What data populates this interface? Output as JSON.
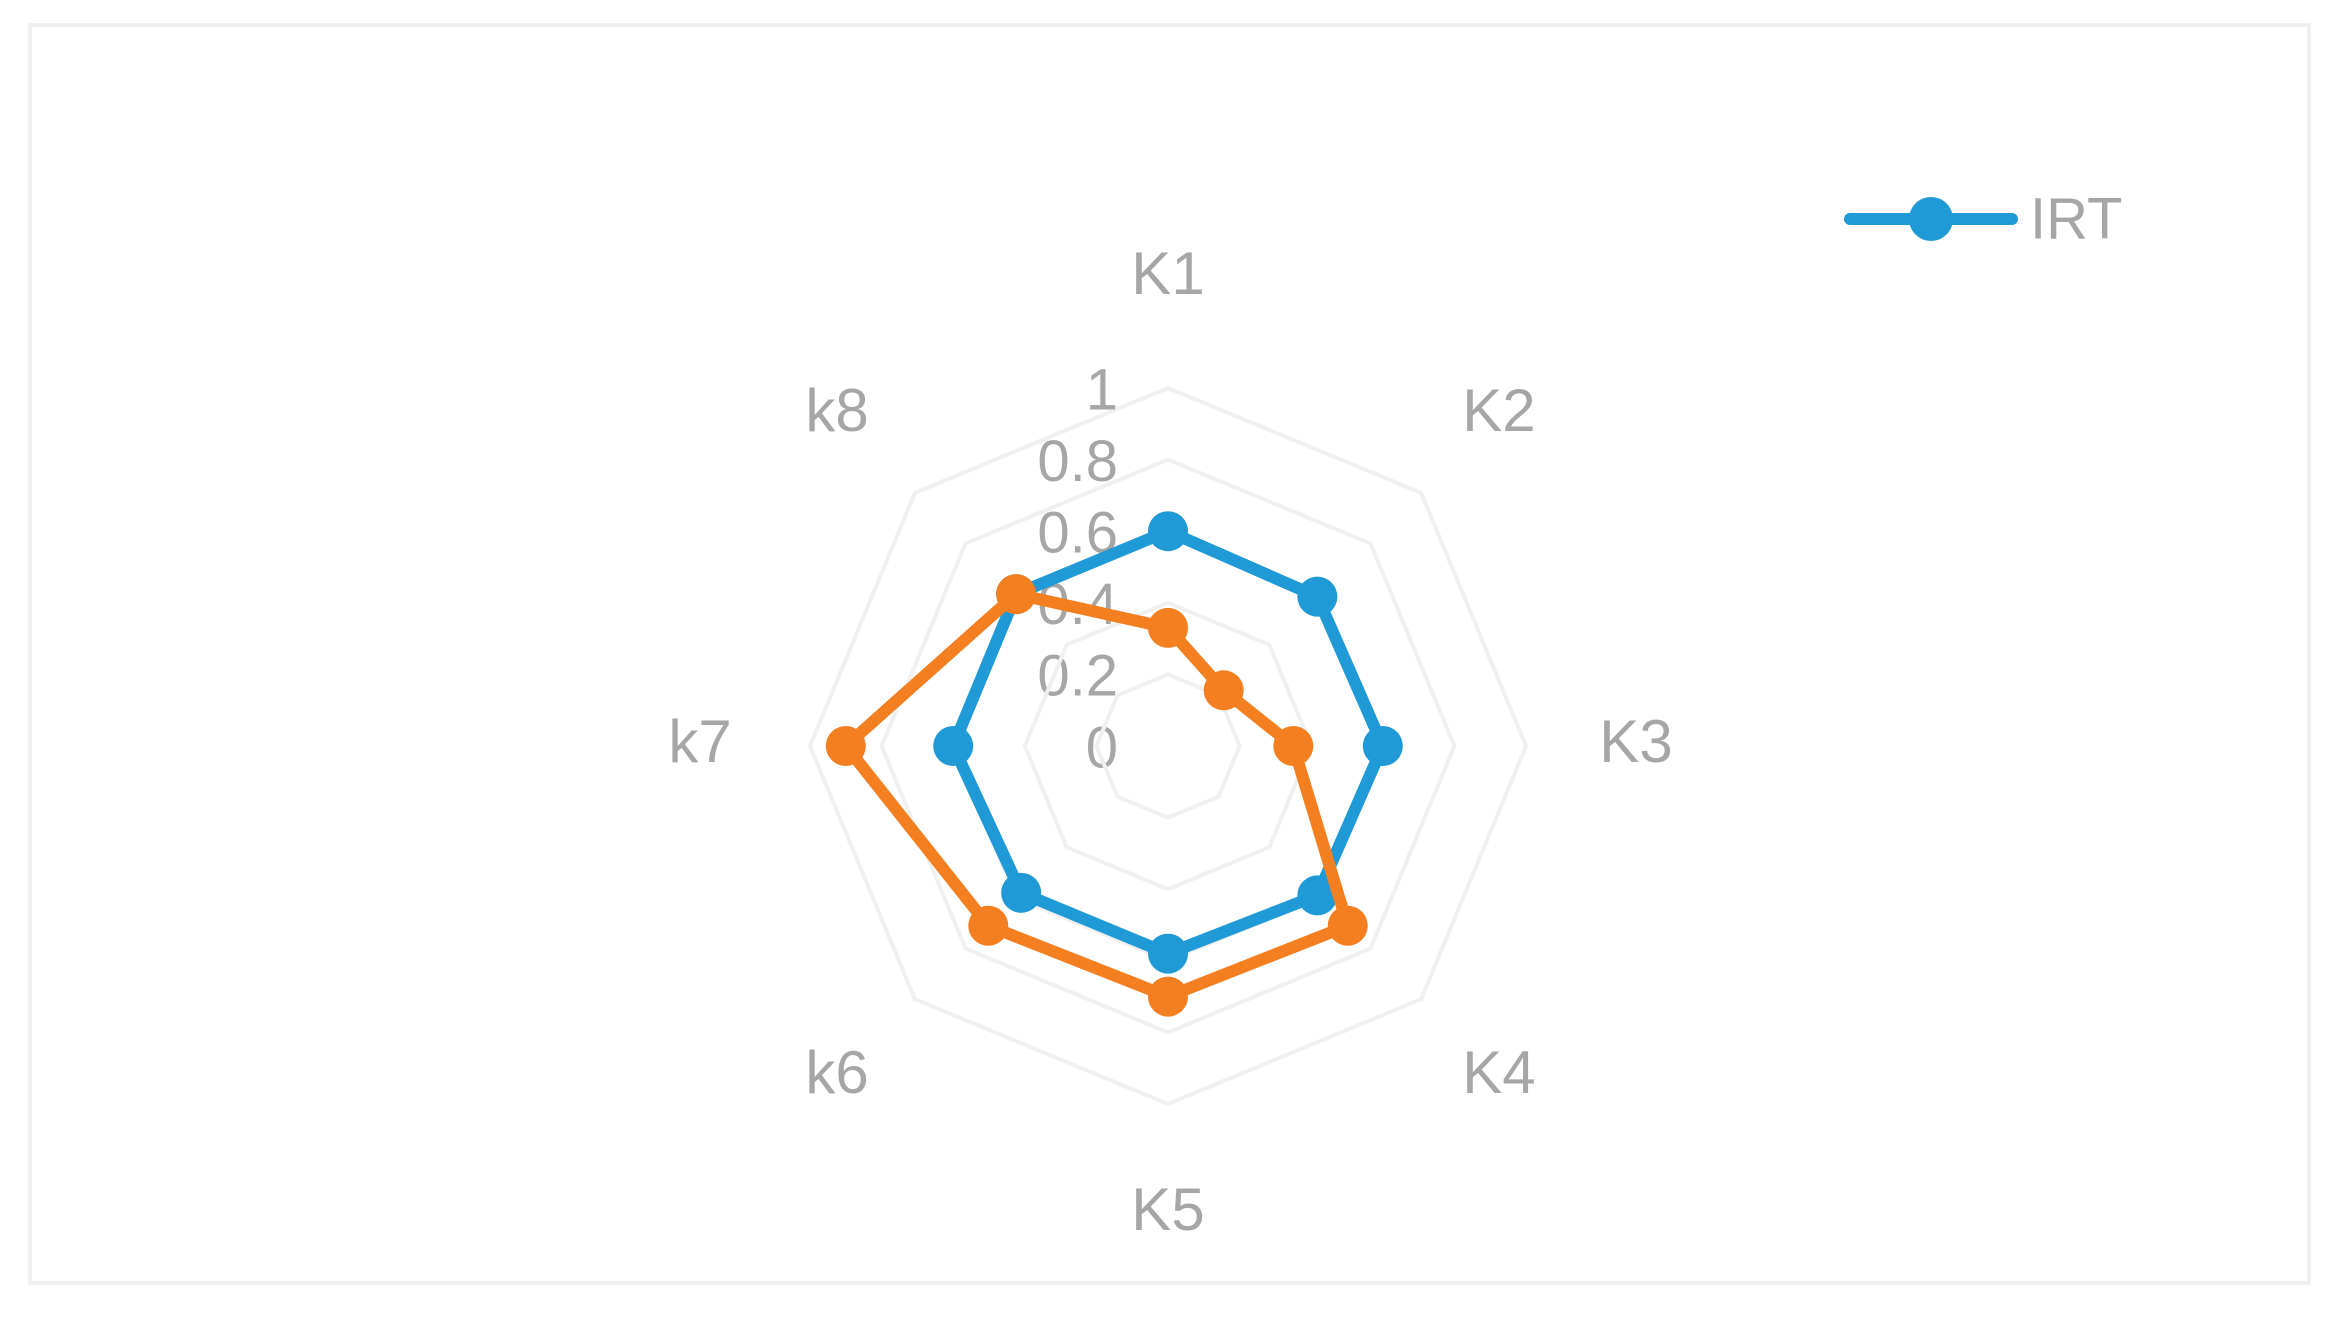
{
  "chart_data": {
    "type": "radar",
    "categories": [
      "K1",
      "K2",
      "K3",
      "K4",
      "K5",
      "k6",
      "k7",
      "k8"
    ],
    "series": [
      {
        "name": "IRT",
        "color": "#1f9ad6",
        "values": [
          0.6,
          0.59,
          0.6,
          0.59,
          0.58,
          0.58,
          0.6,
          0.6
        ]
      },
      {
        "color": "#f47f20",
        "values": [
          0.33,
          0.22,
          0.35,
          0.71,
          0.7,
          0.71,
          0.9,
          0.6
        ]
      }
    ],
    "ylim": [
      0,
      1
    ],
    "yticks": [
      0,
      0.2,
      0.4,
      0.6,
      0.8,
      1
    ],
    "grid": true,
    "legend": "top-right"
  }
}
